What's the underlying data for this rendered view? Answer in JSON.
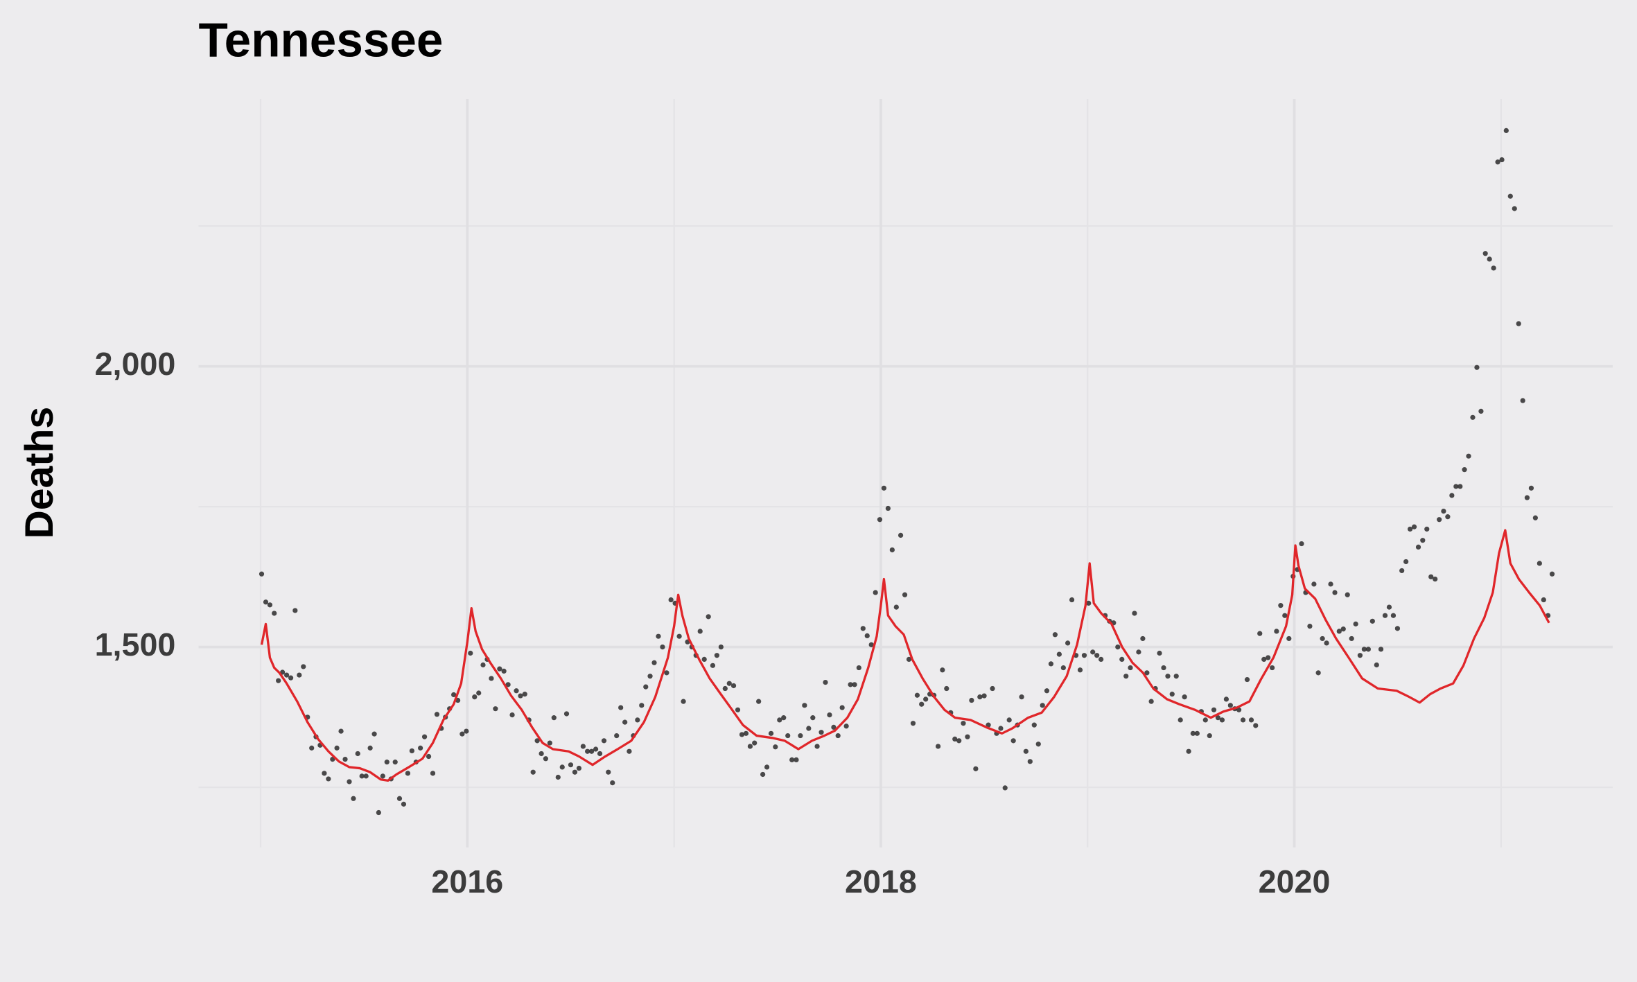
{
  "chart_data": {
    "type": "scatter",
    "title": "Tennessee",
    "y_label": "Deaths",
    "xlim": [
      2014.7,
      2021.54
    ],
    "ylim": [
      1143,
      2476
    ],
    "xticks": [
      2016,
      2018,
      2020
    ],
    "yticks": [
      {
        "value": 1500,
        "label": "1,500"
      },
      {
        "value": 2000,
        "label": "2,000"
      }
    ],
    "grid": true,
    "x": [
      2015.005,
      2015.025,
      2015.045,
      2015.066,
      2015.086,
      2015.106,
      2015.126,
      2015.146,
      2015.167,
      2015.187,
      2015.207,
      2015.227,
      2015.247,
      2015.268,
      2015.288,
      2015.308,
      2015.328,
      2015.348,
      2015.369,
      2015.389,
      2015.409,
      2015.429,
      2015.449,
      2015.47,
      2015.49,
      2015.51,
      2015.53,
      2015.55,
      2015.571,
      2015.591,
      2015.611,
      2015.631,
      2015.651,
      2015.672,
      2015.692,
      2015.712,
      2015.732,
      2015.752,
      2015.773,
      2015.793,
      2015.813,
      2015.833,
      2015.853,
      2015.874,
      2015.894,
      2015.914,
      2015.934,
      2015.954,
      2015.975,
      2015.995,
      2016.015,
      2016.035,
      2016.055,
      2016.076,
      2016.096,
      2016.116,
      2016.136,
      2016.156,
      2016.177,
      2016.197,
      2016.217,
      2016.237,
      2016.257,
      2016.278,
      2016.298,
      2016.318,
      2016.338,
      2016.358,
      2016.379,
      2016.399,
      2016.419,
      2016.439,
      2016.459,
      2016.48,
      2016.5,
      2016.52,
      2016.54,
      2016.56,
      2016.581,
      2016.601,
      2016.621,
      2016.641,
      2016.661,
      2016.682,
      2016.702,
      2016.722,
      2016.742,
      2016.762,
      2016.783,
      2016.803,
      2016.823,
      2016.843,
      2016.863,
      2016.884,
      2016.904,
      2016.924,
      2016.944,
      2016.964,
      2016.985,
      2017.005,
      2017.025,
      2017.045,
      2017.065,
      2017.086,
      2017.106,
      2017.126,
      2017.146,
      2017.166,
      2017.187,
      2017.207,
      2017.227,
      2017.247,
      2017.267,
      2017.288,
      2017.308,
      2017.328,
      2017.348,
      2017.368,
      2017.389,
      2017.409,
      2017.429,
      2017.449,
      2017.469,
      2017.49,
      2017.51,
      2017.53,
      2017.55,
      2017.57,
      2017.591,
      2017.611,
      2017.631,
      2017.651,
      2017.671,
      2017.692,
      2017.712,
      2017.732,
      2017.752,
      2017.772,
      2017.793,
      2017.813,
      2017.833,
      2017.853,
      2017.873,
      2017.894,
      2017.914,
      2017.934,
      2017.954,
      2017.974,
      2017.995,
      2018.015,
      2018.035,
      2018.055,
      2018.075,
      2018.096,
      2018.116,
      2018.136,
      2018.156,
      2018.176,
      2018.197,
      2018.217,
      2018.237,
      2018.257,
      2018.277,
      2018.298,
      2018.318,
      2018.338,
      2018.358,
      2018.378,
      2018.399,
      2018.419,
      2018.439,
      2018.459,
      2018.479,
      2018.5,
      2018.52,
      2018.54,
      2018.56,
      2018.58,
      2018.601,
      2018.621,
      2018.641,
      2018.661,
      2018.681,
      2018.702,
      2018.722,
      2018.742,
      2018.762,
      2018.782,
      2018.803,
      2018.823,
      2018.843,
      2018.863,
      2018.883,
      2018.904,
      2018.924,
      2018.944,
      2018.964,
      2018.984,
      2019.005,
      2019.025,
      2019.045,
      2019.065,
      2019.085,
      2019.106,
      2019.126,
      2019.146,
      2019.166,
      2019.186,
      2019.207,
      2019.227,
      2019.247,
      2019.267,
      2019.287,
      2019.308,
      2019.328,
      2019.348,
      2019.368,
      2019.388,
      2019.409,
      2019.429,
      2019.449,
      2019.469,
      2019.489,
      2019.51,
      2019.53,
      2019.55,
      2019.57,
      2019.59,
      2019.611,
      2019.631,
      2019.651,
      2019.671,
      2019.691,
      2019.712,
      2019.732,
      2019.752,
      2019.772,
      2019.792,
      2019.813,
      2019.833,
      2019.853,
      2019.873,
      2019.893,
      2019.914,
      2019.934,
      2019.954,
      2019.974,
      2019.994,
      2020.015,
      2020.035,
      2020.055,
      2020.075,
      2020.095,
      2020.116,
      2020.136,
      2020.156,
      2020.176,
      2020.196,
      2020.217,
      2020.237,
      2020.257,
      2020.277,
      2020.297,
      2020.318,
      2020.338,
      2020.358,
      2020.378,
      2020.398,
      2020.419,
      2020.439,
      2020.459,
      2020.479,
      2020.499,
      2020.52,
      2020.54,
      2020.56,
      2020.58,
      2020.6,
      2020.621,
      2020.641,
      2020.661,
      2020.681,
      2020.701,
      2020.722,
      2020.742,
      2020.762,
      2020.782,
      2020.802,
      2020.823,
      2020.843,
      2020.863,
      2020.883,
      2020.903,
      2020.924,
      2020.944,
      2020.964,
      2020.984,
      2021.004,
      2021.025,
      2021.045,
      2021.065,
      2021.085,
      2021.105,
      2021.126,
      2021.146,
      2021.166,
      2021.186,
      2021.206,
      2021.227,
      2021.247
    ],
    "series": [
      {
        "type": "scatter",
        "color": "#2b2b2b",
        "values": [
          1630,
          1580,
          1575,
          1560,
          1440,
          1455,
          1450,
          1445,
          1565,
          1450,
          1465,
          1375,
          1320,
          1340,
          1325,
          1275,
          1265,
          1300,
          1320,
          1350,
          1300,
          1260,
          1230,
          1310,
          1270,
          1270,
          1320,
          1345,
          1205,
          1270,
          1295,
          1265,
          1295,
          1230,
          1220,
          1275,
          1315,
          1295,
          1320,
          1340,
          1305,
          1275,
          1380,
          1355,
          1375,
          1390,
          1415,
          1405,
          1345,
          1350,
          1489,
          1411,
          1418,
          1468,
          1478,
          1444,
          1390,
          1461,
          1457,
          1433,
          1379,
          1422,
          1413,
          1416,
          1370,
          1277,
          1333,
          1310,
          1301,
          1329,
          1374,
          1268,
          1286,
          1381,
          1290,
          1277,
          1284,
          1323,
          1314,
          1314,
          1318,
          1310,
          1333,
          1277,
          1258,
          1342,
          1392,
          1366,
          1314,
          1342,
          1370,
          1396,
          1429,
          1448,
          1472,
          1519,
          1500,
          1454,
          1584,
          1578,
          1519,
          1403,
          1509,
          1500,
          1485,
          1528,
          1478,
          1554,
          1467,
          1485,
          1500,
          1426,
          1435,
          1431,
          1388,
          1344,
          1346,
          1323,
          1329,
          1403,
          1273,
          1286,
          1346,
          1322,
          1370,
          1374,
          1342,
          1299,
          1299,
          1342,
          1396,
          1355,
          1374,
          1323,
          1348,
          1437,
          1379,
          1357,
          1342,
          1392,
          1359,
          1433,
          1433,
          1463,
          1533,
          1520,
          1504,
          1597,
          1727,
          1783,
          1747,
          1673,
          1571,
          1699,
          1593,
          1478,
          1364,
          1414,
          1398,
          1407,
          1416,
          1414,
          1323,
          1459,
          1426,
          1383,
          1336,
          1333,
          1364,
          1340,
          1405,
          1283,
          1411,
          1413,
          1361,
          1426,
          1346,
          1355,
          1249,
          1370,
          1333,
          1361,
          1411,
          1314,
          1296,
          1361,
          1327,
          1396,
          1422,
          1470,
          1522,
          1487,
          1463,
          1507,
          1584,
          1485,
          1459,
          1485,
          1578,
          1491,
          1485,
          1478,
          1556,
          1546,
          1543,
          1500,
          1478,
          1448,
          1463,
          1560,
          1491,
          1515,
          1454,
          1403,
          1426,
          1489,
          1463,
          1448,
          1416,
          1448,
          1370,
          1411,
          1314,
          1346,
          1346,
          1385,
          1370,
          1342,
          1388,
          1374,
          1370,
          1407,
          1396,
          1390,
          1388,
          1370,
          1442,
          1370,
          1360,
          1524,
          1478,
          1481,
          1463,
          1528,
          1574,
          1556,
          1515,
          1626,
          1638,
          1684,
          1597,
          1537,
          1612,
          1454,
          1515,
          1507,
          1612,
          1597,
          1528,
          1532,
          1593,
          1515,
          1541,
          1485,
          1496,
          1496,
          1546,
          1468,
          1496,
          1556,
          1571,
          1556,
          1533,
          1636,
          1652,
          1710,
          1714,
          1678,
          1690,
          1710,
          1625,
          1621,
          1727,
          1742,
          1732,
          1770,
          1786,
          1786,
          1816,
          1840,
          1909,
          1998,
          1920,
          2201,
          2191,
          2175,
          2364,
          2368,
          2420,
          2303,
          2281,
          2076,
          1939,
          1766,
          1783,
          1730,
          1649,
          1584,
          1556,
          1630
        ]
      },
      {
        "type": "line",
        "color": "#e0262a",
        "x": [
          2015.005,
          2015.025,
          2015.045,
          2015.066,
          2015.091,
          2015.126,
          2015.177,
          2015.227,
          2015.278,
          2015.328,
          2015.379,
          2015.429,
          2015.48,
          2015.53,
          2015.581,
          2015.616,
          2015.657,
          2015.717,
          2015.783,
          2015.833,
          2015.884,
          2015.934,
          2015.97,
          2016.0,
          2016.02,
          2016.04,
          2016.071,
          2016.111,
          2016.162,
          2016.212,
          2016.263,
          2016.313,
          2016.364,
          2016.414,
          2016.49,
          2016.54,
          2016.606,
          2016.667,
          2016.727,
          2016.793,
          2016.854,
          2016.909,
          2016.97,
          2017.0,
          2017.02,
          2017.04,
          2017.071,
          2017.121,
          2017.172,
          2017.222,
          2017.273,
          2017.333,
          2017.399,
          2017.475,
          2017.535,
          2017.601,
          2017.667,
          2017.727,
          2017.778,
          2017.838,
          2017.889,
          2017.939,
          2017.98,
          2018.0,
          2018.015,
          2018.035,
          2018.071,
          2018.111,
          2018.152,
          2018.202,
          2018.258,
          2018.308,
          2018.359,
          2018.434,
          2018.51,
          2018.586,
          2018.636,
          2018.712,
          2018.778,
          2018.838,
          2018.899,
          2018.949,
          2018.99,
          2019.01,
          2019.03,
          2019.066,
          2019.116,
          2019.167,
          2019.217,
          2019.268,
          2019.318,
          2019.384,
          2019.444,
          2019.52,
          2019.596,
          2019.657,
          2019.722,
          2019.783,
          2019.838,
          2019.899,
          2019.96,
          2019.99,
          2020.005,
          2020.02,
          2020.051,
          2020.101,
          2020.152,
          2020.202,
          2020.263,
          2020.328,
          2020.404,
          2020.495,
          2020.556,
          2020.606,
          2020.657,
          2020.707,
          2020.768,
          2020.818,
          2020.869,
          2020.919,
          2020.96,
          2020.99,
          2021.02,
          2021.045,
          2021.086,
          2021.136,
          2021.187,
          2021.232
        ],
        "values": [
          1504,
          1541,
          1481,
          1463,
          1454,
          1435,
          1403,
          1366,
          1336,
          1314,
          1296,
          1286,
          1284,
          1277,
          1264,
          1262,
          1273,
          1286,
          1301,
          1329,
          1370,
          1398,
          1435,
          1509,
          1569,
          1528,
          1496,
          1472,
          1444,
          1413,
          1388,
          1357,
          1329,
          1318,
          1314,
          1305,
          1290,
          1305,
          1318,
          1333,
          1366,
          1411,
          1481,
          1537,
          1593,
          1556,
          1515,
          1478,
          1444,
          1418,
          1392,
          1361,
          1342,
          1338,
          1333,
          1318,
          1333,
          1342,
          1351,
          1374,
          1407,
          1463,
          1519,
          1574,
          1621,
          1556,
          1537,
          1522,
          1478,
          1444,
          1411,
          1388,
          1374,
          1370,
          1357,
          1346,
          1355,
          1374,
          1383,
          1411,
          1448,
          1504,
          1574,
          1649,
          1578,
          1560,
          1541,
          1500,
          1472,
          1454,
          1426,
          1407,
          1398,
          1388,
          1374,
          1385,
          1392,
          1403,
          1442,
          1481,
          1537,
          1593,
          1681,
          1645,
          1604,
          1586,
          1548,
          1515,
          1481,
          1444,
          1426,
          1422,
          1411,
          1401,
          1416,
          1426,
          1435,
          1467,
          1515,
          1552,
          1597,
          1667,
          1708,
          1649,
          1621,
          1597,
          1574,
          1543
        ]
      }
    ]
  }
}
